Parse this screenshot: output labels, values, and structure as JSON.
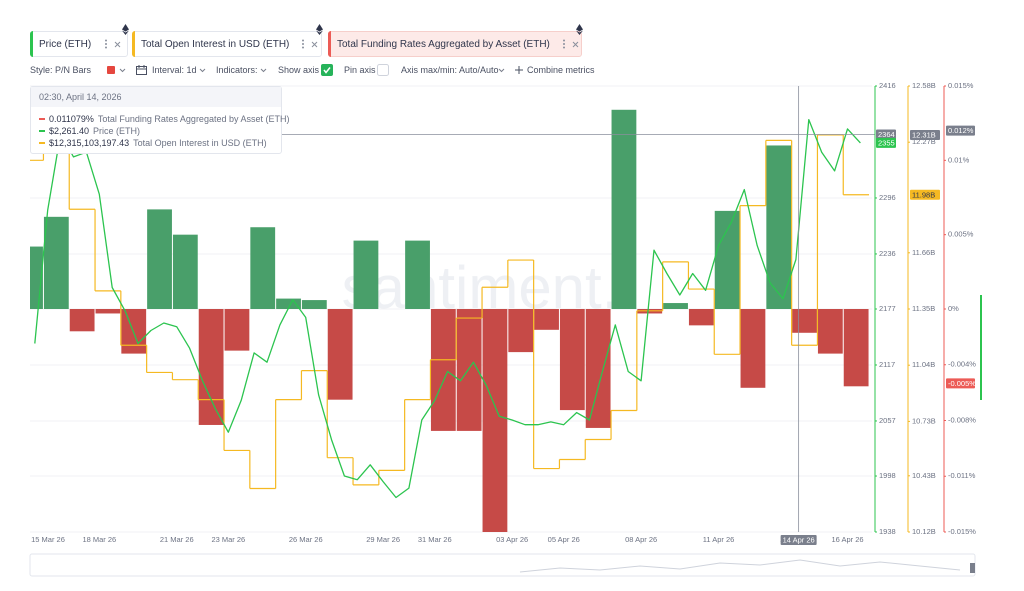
{
  "toolbar": {
    "style": "Style: P/N Bars",
    "interval": "Interval: 1d",
    "indicators": "Indicators:",
    "show_axis": "Show axis",
    "pin_axis": "Pin axis",
    "axis_maxmin": "Axis max/min: Auto/Auto",
    "combine": "Combine metrics"
  },
  "tooltip": {
    "title": "02:30, April 14, 2026",
    "rows": [
      {
        "value": "0.011079%"
      },
      {
        "value": "$2,261.40"
      },
      {
        "value": "$12,315,103,197.43"
      }
    ]
  },
  "watermark": "santiment.",
  "chart_data": {
    "type": "combo",
    "xlim": [
      "2026-03-15T07:30",
      "2026-04-16T22:45"
    ],
    "xticks": [
      {
        "value": "2026-03-15",
        "label": "15 Mar 26"
      },
      {
        "value": "2026-03-18",
        "label": "18 Mar 26"
      },
      {
        "value": "2026-03-21",
        "label": "21 Mar 26"
      },
      {
        "value": "2026-03-23",
        "label": "23 Mar 26"
      },
      {
        "value": "2026-03-26",
        "label": "26 Mar 26"
      },
      {
        "value": "2026-03-29",
        "label": "29 Mar 26"
      },
      {
        "value": "2026-03-31",
        "label": "31 Mar 26"
      },
      {
        "value": "2026-04-03",
        "label": "03 Apr 26"
      },
      {
        "value": "2026-04-05",
        "label": "05 Apr 26"
      },
      {
        "value": "2026-04-08",
        "label": "08 Apr 26"
      },
      {
        "value": "2026-04-11",
        "label": "11 Apr 26"
      },
      {
        "value": "2026-04-14",
        "label": "14 Apr 26"
      },
      {
        "value": "2026-04-16",
        "label": "16 Apr 26"
      }
    ],
    "ylim": [
      1938,
      2416
    ],
    "yticks": [
      2416,
      2296,
      2236,
      2177,
      2117,
      2057,
      1998,
      1938
    ],
    "y2lim": [
      10120000000,
      12580000000
    ],
    "y2ticks": [
      {
        "value": 12580000000,
        "label": "12.58B"
      },
      {
        "value": 12270000000,
        "label": "12.27B"
      },
      {
        "value": 11660000000,
        "label": "11.66B"
      },
      {
        "value": 11350000000,
        "label": "11.35B"
      },
      {
        "value": 11040000000,
        "label": "11.04B"
      },
      {
        "value": 10730000000,
        "label": "10.73B"
      },
      {
        "value": 10430000000,
        "label": "10.43B"
      },
      {
        "value": 10120000000,
        "label": "10.12B"
      }
    ],
    "y3lim": [
      -0.015,
      0.015
    ],
    "y3ticks": [
      {
        "value": 0.015,
        "label": "0.015%"
      },
      {
        "value": 0.01,
        "label": "0.01%"
      },
      {
        "value": 0.005,
        "label": "0.005%"
      },
      {
        "value": 0,
        "label": "0%"
      },
      {
        "value": -0.00375,
        "label": "-0.004%"
      },
      {
        "value": -0.0075,
        "label": "-0.008%"
      },
      {
        "value": -0.01125,
        "label": "-0.011%"
      },
      {
        "value": -0.015,
        "label": "-0.015%"
      }
    ],
    "grid": true,
    "series": [
      {
        "name": "Price (ETH)",
        "type": "line",
        "color": "#2cc44f",
        "axis": "y",
        "x": [
          "2026-03-15T12:00",
          "2026-03-16T00:00",
          "2026-03-16T12:00",
          "2026-03-17T00:00",
          "2026-03-17T12:00",
          "2026-03-18T00:00",
          "2026-03-18T12:00",
          "2026-03-19T00:00",
          "2026-03-19T12:00",
          "2026-03-20T00:00",
          "2026-03-20T12:00",
          "2026-03-21T00:00",
          "2026-03-21T12:00",
          "2026-03-22T00:00",
          "2026-03-22T12:00",
          "2026-03-23T00:00",
          "2026-03-23T12:00",
          "2026-03-24T00:00",
          "2026-03-24T12:00",
          "2026-03-25T00:00",
          "2026-03-25T12:00",
          "2026-03-26T00:00",
          "2026-03-26T12:00",
          "2026-03-27T00:00",
          "2026-03-27T12:00",
          "2026-03-28T00:00",
          "2026-03-28T12:00",
          "2026-03-29T00:00",
          "2026-03-29T12:00",
          "2026-03-30T00:00",
          "2026-03-30T12:00",
          "2026-03-31T00:00",
          "2026-03-31T12:00",
          "2026-04-01T00:00",
          "2026-04-01T12:00",
          "2026-04-02T00:00",
          "2026-04-02T12:00",
          "2026-04-03T00:00",
          "2026-04-03T12:00",
          "2026-04-04T00:00",
          "2026-04-04T12:00",
          "2026-04-05T00:00",
          "2026-04-05T12:00",
          "2026-04-06T00:00",
          "2026-04-06T12:00",
          "2026-04-07T00:00",
          "2026-04-07T12:00",
          "2026-04-08T00:00",
          "2026-04-08T12:00",
          "2026-04-09T00:00",
          "2026-04-09T12:00",
          "2026-04-10T00:00",
          "2026-04-10T12:00",
          "2026-04-11T00:00",
          "2026-04-11T12:00",
          "2026-04-12T00:00",
          "2026-04-12T12:00",
          "2026-04-13T00:00",
          "2026-04-13T12:00",
          "2026-04-14T00:00",
          "2026-04-14T12:00",
          "2026-04-15T00:00",
          "2026-04-15T12:00",
          "2026-04-16T00:00",
          "2026-04-16T12:00"
        ],
        "values": [
          2140,
          2283,
          2365,
          2340,
          2345,
          2300,
          2200,
          2175,
          2140,
          2154,
          2162,
          2158,
          2135,
          2100,
          2070,
          2045,
          2079,
          2130,
          2120,
          2160,
          2187,
          2168,
          2085,
          2037,
          1998,
          1994,
          2010,
          1992,
          1975,
          1985,
          2058,
          2079,
          2110,
          2100,
          2120,
          2095,
          2062,
          2058,
          2053,
          2053,
          2056,
          2053,
          2066,
          2058,
          2110,
          2160,
          2110,
          2100,
          2240,
          2215,
          2192,
          2215,
          2197,
          2245,
          2270,
          2305,
          2245,
          2205,
          2188,
          2230,
          2380,
          2345,
          2325,
          2370,
          2355
        ]
      },
      {
        "name": "Total Open Interest in USD (ETH)",
        "type": "step",
        "color": "#f5b922",
        "axis": "y2",
        "x": [
          "2026-03-15T08:00",
          "2026-03-16T08:00",
          "2026-03-17T08:00",
          "2026-03-18T08:00",
          "2026-03-19T08:00",
          "2026-03-20T08:00",
          "2026-03-21T08:00",
          "2026-03-22T08:00",
          "2026-03-23T08:00",
          "2026-03-24T08:00",
          "2026-03-25T08:00",
          "2026-03-26T08:00",
          "2026-03-27T08:00",
          "2026-03-28T08:00",
          "2026-03-29T08:00",
          "2026-03-30T08:00",
          "2026-03-31T08:00",
          "2026-04-01T08:00",
          "2026-04-02T08:00",
          "2026-04-03T08:00",
          "2026-04-04T08:00",
          "2026-04-05T08:00",
          "2026-04-06T08:00",
          "2026-04-07T08:00",
          "2026-04-08T08:00",
          "2026-04-09T08:00",
          "2026-04-10T08:00",
          "2026-04-11T08:00",
          "2026-04-12T08:00",
          "2026-04-13T08:00",
          "2026-04-14T08:00",
          "2026-04-15T08:00",
          "2026-04-16T08:00"
        ],
        "values": [
          12170000000,
          12230000000,
          11900000000,
          11450000000,
          11150000000,
          11000000000,
          10960000000,
          10850000000,
          10570000000,
          10360000000,
          10850000000,
          11010000000,
          10530000000,
          10380000000,
          10460000000,
          10850000000,
          11070000000,
          11300000000,
          11470000000,
          11620000000,
          10470000000,
          10520000000,
          10630000000,
          10790000000,
          11340000000,
          11610000000,
          11460000000,
          11100000000,
          11920000000,
          12280000000,
          11150000000,
          12310000000,
          11980000000
        ]
      },
      {
        "name": "Total Funding Rates Aggregated by Asset (ETH)",
        "type": "pn-bar",
        "color": "#ec5b56",
        "positive_color": "#3f9a62",
        "negative_color": "#c3403d",
        "axis": "y3",
        "x": [
          "2026-03-15T08:00",
          "2026-03-16T08:00",
          "2026-03-17T08:00",
          "2026-03-18T08:00",
          "2026-03-19T08:00",
          "2026-03-20T08:00",
          "2026-03-21T08:00",
          "2026-03-22T08:00",
          "2026-03-23T08:00",
          "2026-03-24T08:00",
          "2026-03-25T08:00",
          "2026-03-26T08:00",
          "2026-03-27T08:00",
          "2026-03-28T08:00",
          "2026-03-29T08:00",
          "2026-03-30T08:00",
          "2026-03-31T08:00",
          "2026-04-01T08:00",
          "2026-04-02T08:00",
          "2026-04-03T08:00",
          "2026-04-04T08:00",
          "2026-04-05T08:00",
          "2026-04-06T08:00",
          "2026-04-07T08:00",
          "2026-04-08T08:00",
          "2026-04-09T08:00",
          "2026-04-10T08:00",
          "2026-04-11T08:00",
          "2026-04-12T08:00",
          "2026-04-13T08:00",
          "2026-04-14T08:00",
          "2026-04-15T08:00",
          "2026-04-16T08:00"
        ],
        "values": [
          0.0042,
          0.0062,
          -0.0015,
          -0.0003,
          -0.003,
          0.0067,
          0.005,
          -0.0078,
          -0.0028,
          0.0055,
          0.0007,
          0.0006,
          -0.0061,
          0.0046,
          0,
          0.0046,
          -0.0082,
          -0.0082,
          -0.015,
          -0.0029,
          -0.0014,
          -0.0068,
          -0.008,
          0.0134,
          -0.0003,
          0.0004,
          -0.0011,
          0.0066,
          -0.0053,
          0.011,
          -0.0016,
          -0.003,
          -0.0052
        ]
      }
    ],
    "crosshair": {
      "x": "2026-04-14T02:30",
      "x_label": "14 Apr 26",
      "price": 2364,
      "oi": {
        "value": 12310000000,
        "label": "12.31B"
      },
      "funding": {
        "value": 0.012,
        "label": "0.012%"
      }
    },
    "last": {
      "price": 2355,
      "oi": {
        "value": 11980000000,
        "label": "11.98B"
      },
      "funding": {
        "value": -0.005,
        "label": "-0.005%"
      }
    }
  }
}
